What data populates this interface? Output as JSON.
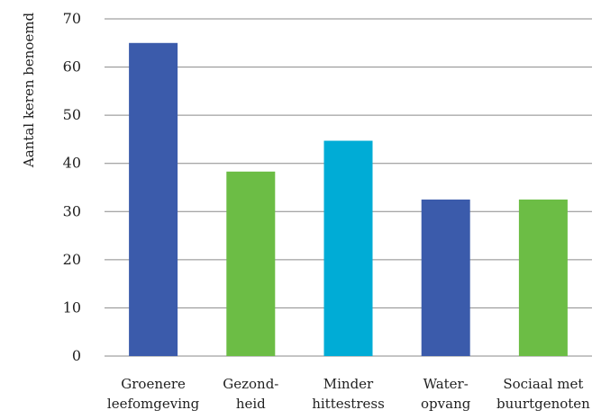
{
  "chart_data": {
    "type": "bar",
    "ylabel": "Aantal keren benoemd",
    "ylim": [
      0,
      70
    ],
    "yticks": [
      0,
      10,
      20,
      30,
      40,
      50,
      60,
      70
    ],
    "grid": true,
    "categories": [
      [
        "Groenere",
        "leefomgeving"
      ],
      [
        "Gezond-",
        "heid"
      ],
      [
        "Minder",
        "hittestress"
      ],
      [
        "Water-",
        "opvang"
      ],
      [
        "Sociaal met",
        "buurtgenoten"
      ]
    ],
    "values": [
      65,
      38.3,
      44.7,
      32.5,
      32.5
    ],
    "bar_colors": [
      "#3b5bab",
      "#6cbd45",
      "#00acd6",
      "#3b5bab",
      "#6cbd45"
    ]
  }
}
